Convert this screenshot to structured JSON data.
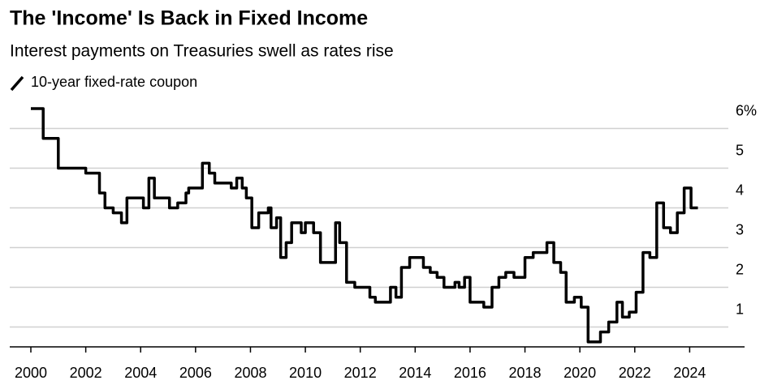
{
  "chart_data": {
    "type": "line",
    "title": "The 'Income' Is Back in Fixed Income",
    "subtitle": "Interest payments on Treasuries swell as rates rise",
    "x": [
      2000.0,
      2000.3,
      2000.45,
      2000.75,
      2001.0,
      2001.7,
      2002.0,
      2002.3,
      2002.5,
      2002.7,
      2003.0,
      2003.3,
      2003.5,
      2003.9,
      2004.1,
      2004.3,
      2004.5,
      2004.9,
      2005.05,
      2005.35,
      2005.65,
      2005.75,
      2006.05,
      2006.25,
      2006.5,
      2006.7,
      2007.1,
      2007.3,
      2007.5,
      2007.7,
      2007.85,
      2008.05,
      2008.3,
      2008.65,
      2008.75,
      2008.95,
      2009.1,
      2009.3,
      2009.5,
      2009.7,
      2009.85,
      2010.0,
      2010.3,
      2010.55,
      2010.95,
      2011.1,
      2011.25,
      2011.5,
      2011.8,
      2012.2,
      2012.35,
      2012.55,
      2012.9,
      2013.1,
      2013.3,
      2013.5,
      2013.8,
      2014.2,
      2014.3,
      2014.55,
      2014.8,
      2015.05,
      2015.45,
      2015.6,
      2015.8,
      2016.0,
      2016.5,
      2016.8,
      2017.05,
      2017.3,
      2017.6,
      2018.0,
      2018.3,
      2018.7,
      2018.8,
      2019.05,
      2019.3,
      2019.5,
      2019.8,
      2020.05,
      2020.3,
      2020.75,
      2021.05,
      2021.35,
      2021.55,
      2021.8,
      2022.05,
      2022.3,
      2022.55,
      2022.8,
      2023.05,
      2023.3,
      2023.55,
      2023.8,
      2024.05,
      2024.3
    ],
    "series": [
      {
        "name": "10-year fixed-rate coupon",
        "color": "#000000",
        "values": [
          6.5,
          6.5,
          5.75,
          5.75,
          5.0,
          5.0,
          4.875,
          4.875,
          4.375,
          4.0,
          3.875,
          3.625,
          4.25,
          4.25,
          4.0,
          4.75,
          4.25,
          4.25,
          4.0,
          4.125,
          4.375,
          4.5,
          4.5,
          5.125,
          4.875,
          4.625,
          4.625,
          4.5,
          4.75,
          4.5,
          4.25,
          3.5,
          3.875,
          4.0,
          3.5,
          3.75,
          2.75,
          3.125,
          3.625,
          3.625,
          3.375,
          3.625,
          3.375,
          2.625,
          2.625,
          3.625,
          3.125,
          2.125,
          2.0,
          2.0,
          1.75,
          1.625,
          1.625,
          2.0,
          1.75,
          2.5,
          2.75,
          2.75,
          2.5,
          2.375,
          2.25,
          2.0,
          2.125,
          2.0,
          2.25,
          1.625,
          1.5,
          2.0,
          2.25,
          2.375,
          2.25,
          2.75,
          2.875,
          2.875,
          3.125,
          2.625,
          2.375,
          1.625,
          1.75,
          1.5,
          0.625,
          0.875,
          1.125,
          1.625,
          1.25,
          1.375,
          1.875,
          2.875,
          2.75,
          4.125,
          3.5,
          3.375,
          3.875,
          4.5,
          4.0,
          4.0
        ]
      }
    ],
    "xlim": [
      2000,
      2026
    ],
    "xticks": [
      2000,
      2002,
      2004,
      2006,
      2008,
      2010,
      2012,
      2014,
      2016,
      2018,
      2020,
      2022,
      2024
    ],
    "ylim": [
      0.5,
      6.5
    ],
    "yticks": [
      {
        "value": 6,
        "label": "6%"
      },
      5,
      4,
      3,
      2,
      1
    ],
    "grid": true
  }
}
